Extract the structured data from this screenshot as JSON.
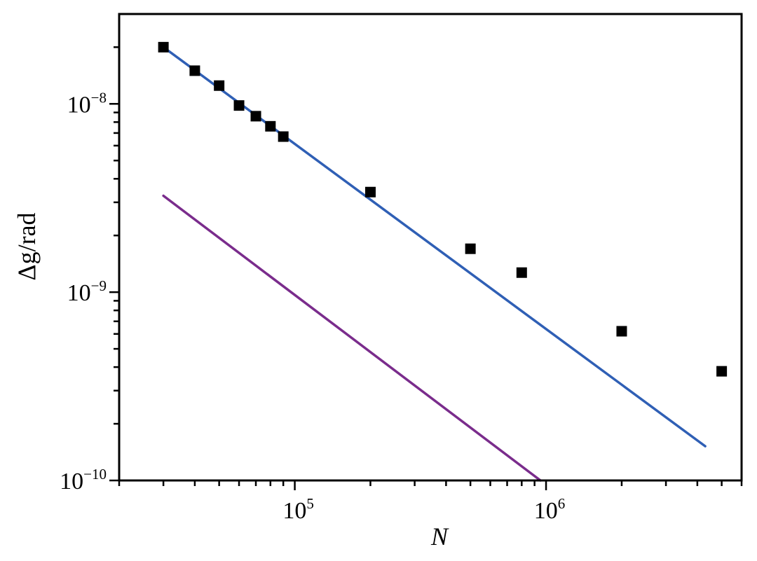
{
  "chart_data": {
    "type": "scatter",
    "xscale": "log",
    "yscale": "log",
    "xlim": [
      20000,
      6000000
    ],
    "ylim": [
      1e-10,
      3e-08
    ],
    "xlabel": "N",
    "ylabel": "Δg/rad",
    "grid": false,
    "x_ticks": [
      {
        "value": 100000,
        "base": "10",
        "exp": "5"
      },
      {
        "value": 1000000,
        "base": "10",
        "exp": "6"
      }
    ],
    "y_ticks": [
      {
        "value": 1e-08,
        "base": "10",
        "exp": "−8"
      },
      {
        "value": 1e-09,
        "base": "10",
        "exp": "−9"
      },
      {
        "value": 1e-10,
        "base": "10",
        "exp": "−10"
      }
    ],
    "series": [
      {
        "kind": "points",
        "color": "#000000",
        "x": [
          30000,
          40000,
          50000,
          60000,
          70000,
          80000,
          90000,
          200000,
          500000,
          800000,
          2000000,
          5000000
        ],
        "y": [
          2e-08,
          1.5e-08,
          1.25e-08,
          9.8e-09,
          8.6e-09,
          7.6e-09,
          6.7e-09,
          3.4e-09,
          1.7e-09,
          1.27e-09,
          6.2e-10,
          3.8e-10
        ]
      },
      {
        "kind": "line",
        "color": "#2f5fb5",
        "x": [
          30000,
          4300000
        ],
        "y": [
          2e-08,
          1.52e-10
        ]
      },
      {
        "kind": "line",
        "color": "#7a2c8c",
        "x": [
          30000,
          950000
        ],
        "y": [
          3.25e-09,
          1e-10
        ]
      }
    ]
  }
}
